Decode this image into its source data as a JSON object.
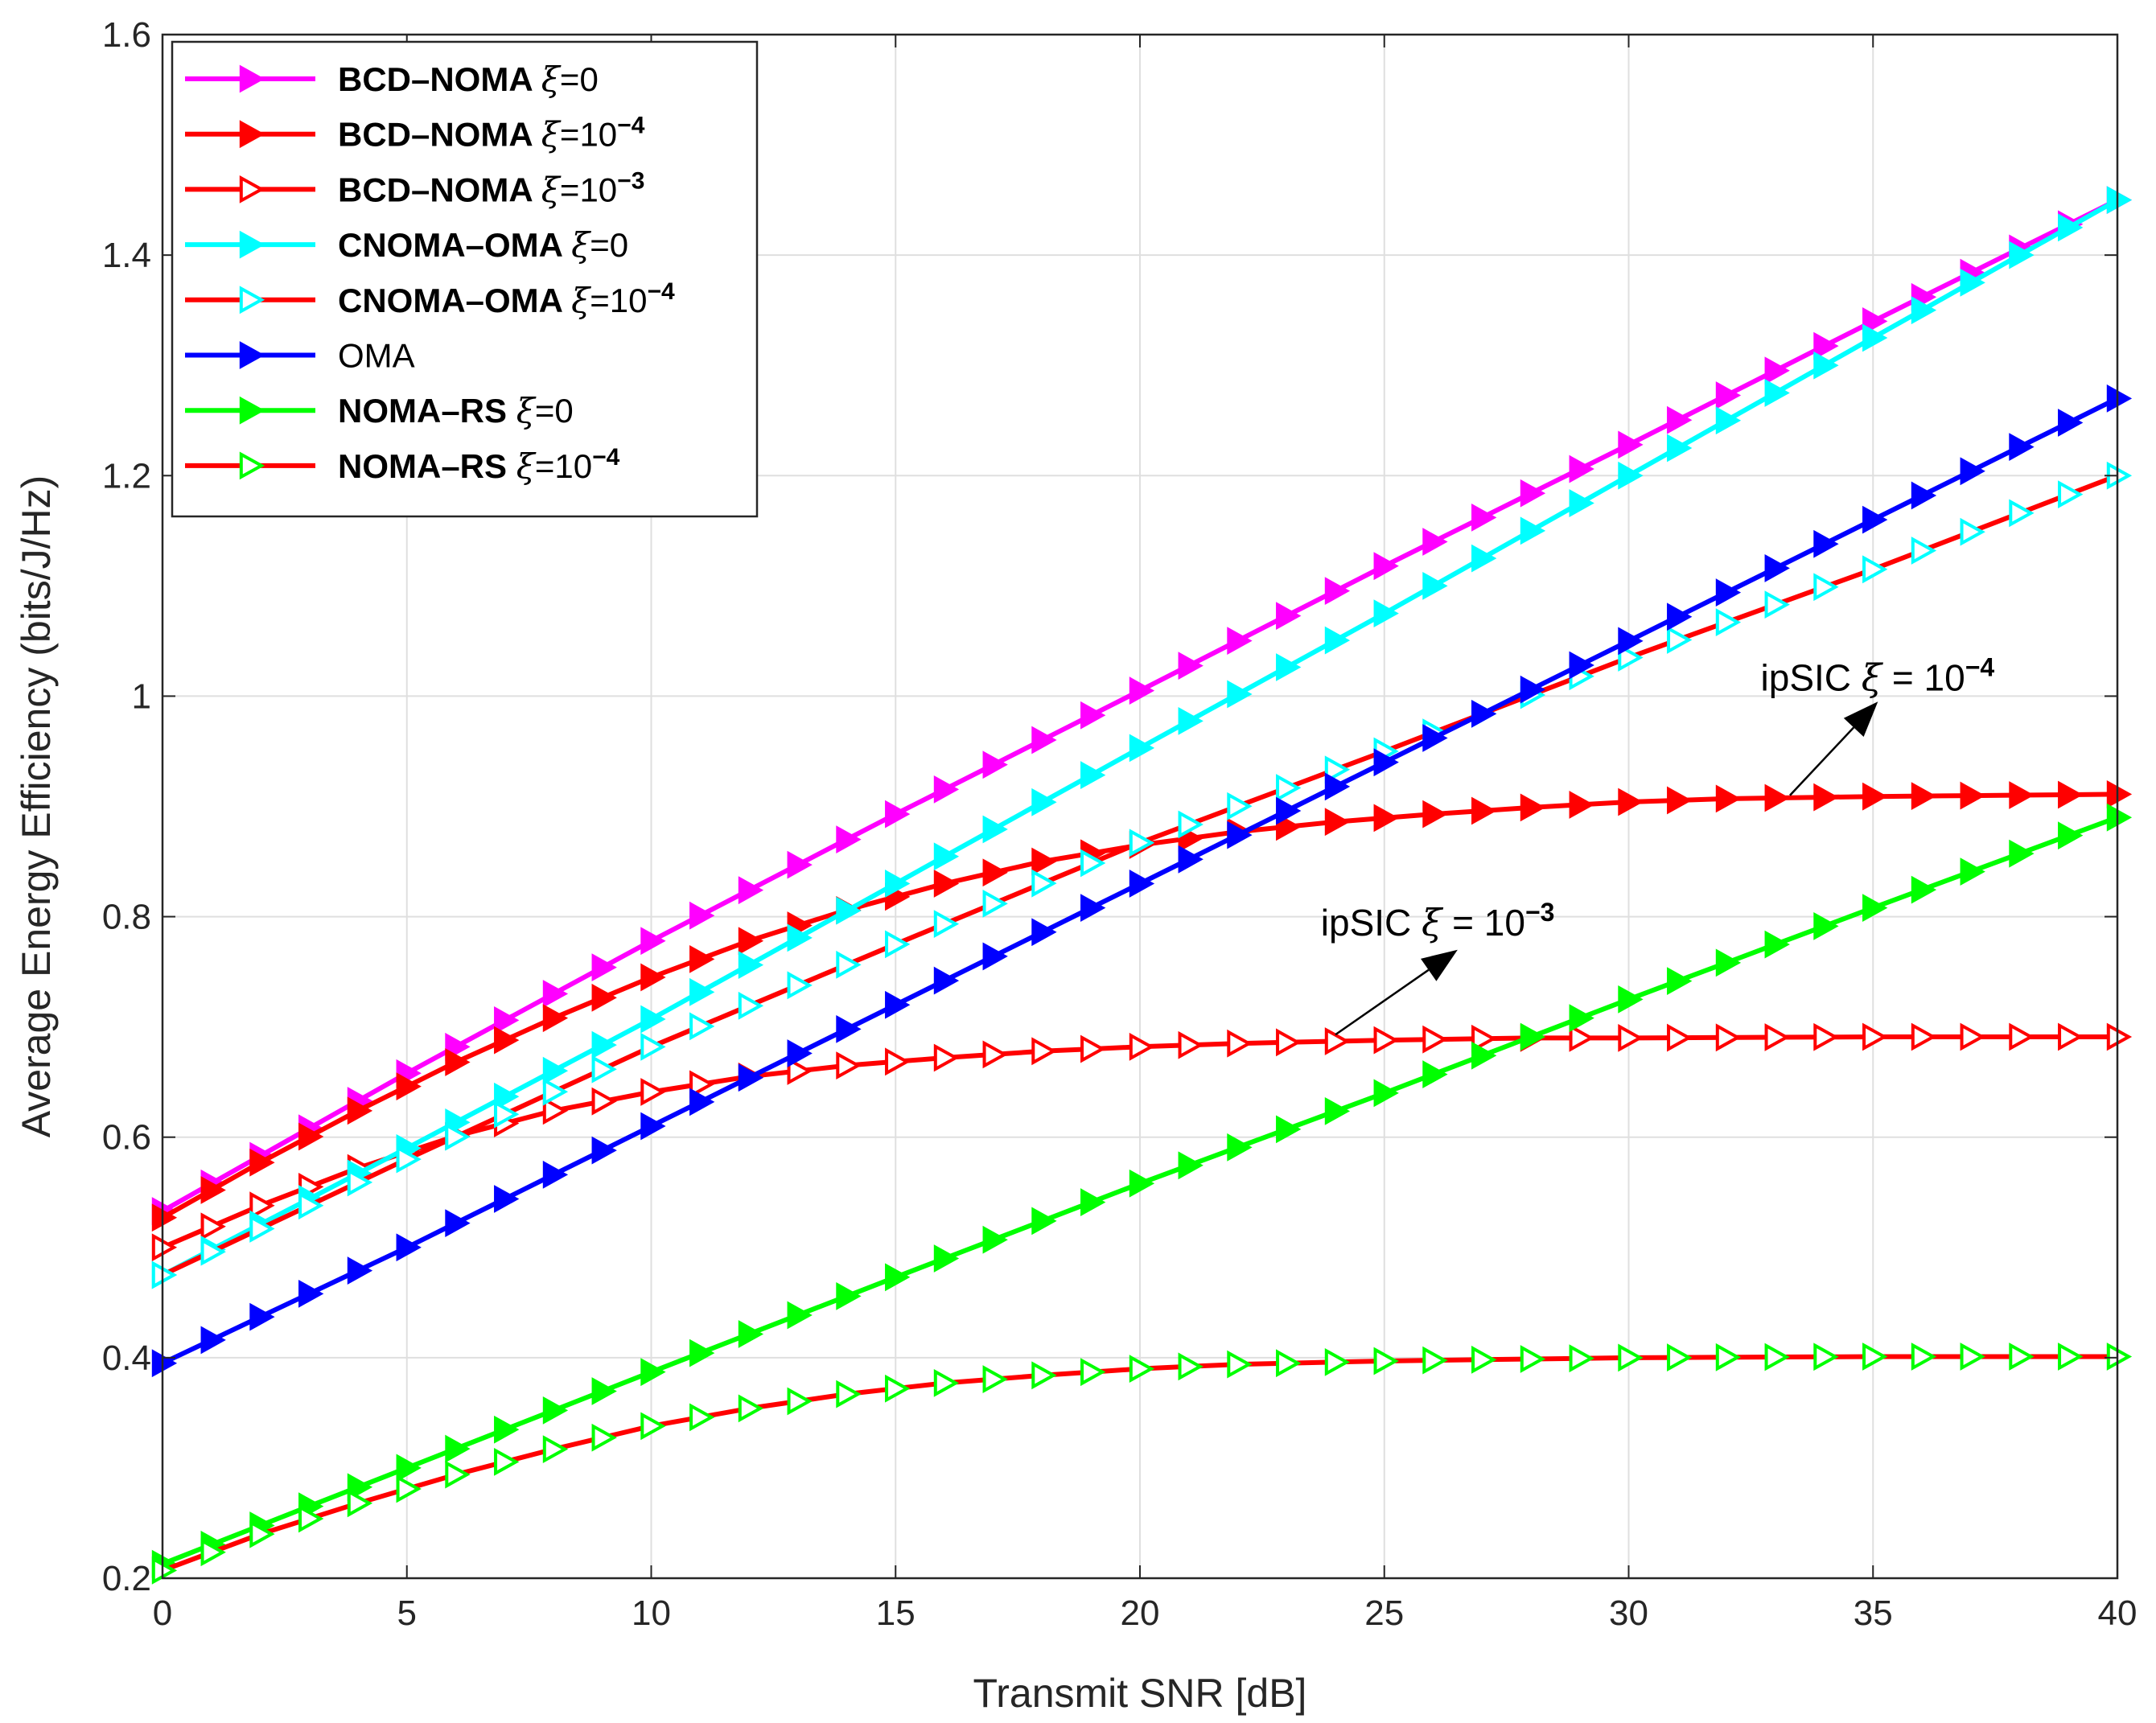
{
  "chart_data": {
    "type": "line",
    "xlabel": "Transmit SNR [dB]",
    "ylabel": "Average Energy Efficiency (bits/J/Hz)",
    "xlim": [
      0,
      40
    ],
    "ylim": [
      0.2,
      1.6
    ],
    "xticks": [
      0,
      5,
      10,
      15,
      20,
      25,
      30,
      35,
      40
    ],
    "yticks": [
      0.2,
      0.4,
      0.6,
      0.8,
      1,
      1.2,
      1.4,
      1.6
    ],
    "xtick_labels": [
      "0",
      "5",
      "10",
      "15",
      "20",
      "25",
      "30",
      "35",
      "40"
    ],
    "ytick_labels": [
      "0.2",
      "0.4",
      "0.6",
      "0.8",
      "1",
      "1.2",
      "1.4",
      "1.6"
    ],
    "grid": true,
    "legend_position": "top-left",
    "series": [
      {
        "name": "BCD–NOMA ξ=0",
        "label_main": "BCD–NOMA ",
        "label_sym": "ξ",
        "label_eq": "=0",
        "label_exp": "",
        "bold": true,
        "line_color": "#ff00ff",
        "marker_color": "#ff00ff",
        "marker_fill": "#ff00ff",
        "x": [
          0,
          5,
          10,
          15,
          20,
          25,
          30,
          35,
          40
        ],
        "y": [
          0.533,
          0.658,
          0.778,
          0.893,
          1.005,
          1.118,
          1.228,
          1.34,
          1.45
        ]
      },
      {
        "name": "BCD–NOMA ξ=10^-4",
        "label_main": "BCD–NOMA ",
        "label_sym": "ξ",
        "label_eq": "=10",
        "label_exp": "−4",
        "bold": true,
        "line_color": "#ff0000",
        "marker_color": "#ff0000",
        "marker_fill": "#ff0000",
        "x": [
          0,
          2,
          4,
          6,
          8,
          10,
          12,
          14,
          16,
          18,
          20,
          22,
          24,
          26,
          28,
          30,
          32,
          35,
          40
        ],
        "y": [
          0.527,
          0.577,
          0.624,
          0.668,
          0.708,
          0.745,
          0.778,
          0.806,
          0.83,
          0.85,
          0.865,
          0.877,
          0.886,
          0.893,
          0.899,
          0.904,
          0.907,
          0.909,
          0.911
        ]
      },
      {
        "name": "BCD–NOMA ξ=10^-3",
        "label_main": "BCD–NOMA ",
        "label_sym": "ξ",
        "label_eq": "=10",
        "label_exp": "−3",
        "bold": true,
        "line_color": "#ff0000",
        "marker_color": "#ff0000",
        "marker_fill": "#ffffff",
        "x": [
          0,
          2,
          4,
          6,
          8,
          10,
          12,
          14,
          16,
          18,
          20,
          22,
          25,
          28,
          30,
          35,
          40
        ],
        "y": [
          0.5,
          0.538,
          0.572,
          0.601,
          0.624,
          0.641,
          0.655,
          0.665,
          0.672,
          0.678,
          0.682,
          0.685,
          0.688,
          0.69,
          0.69,
          0.691,
          0.691
        ]
      },
      {
        "name": "CNOMA–OMA ξ=0",
        "label_main": "CNOMA–OMA ",
        "label_sym": "ξ",
        "label_eq": "=0",
        "label_exp": "",
        "bold": true,
        "line_color": "#00ffff",
        "marker_color": "#00ffff",
        "marker_fill": "#00ffff",
        "x": [
          0,
          5,
          10,
          15,
          20,
          25,
          30,
          35,
          40
        ],
        "y": [
          0.475,
          0.59,
          0.707,
          0.83,
          0.953,
          1.075,
          1.2,
          1.325,
          1.45
        ]
      },
      {
        "name": "CNOMA–OMA ξ=10^-4",
        "label_main": "CNOMA–OMA ",
        "label_sym": "ξ",
        "label_eq": "=10",
        "label_exp": "−4",
        "bold": true,
        "line_color": "#ff0000",
        "marker_color": "#00ffff",
        "marker_fill": "#ffffff",
        "x": [
          0,
          5,
          10,
          15,
          20,
          25,
          30,
          35,
          40
        ],
        "y": [
          0.475,
          0.58,
          0.682,
          0.775,
          0.867,
          0.95,
          1.035,
          1.115,
          1.2
        ]
      },
      {
        "name": "OMA",
        "label_main": "OMA",
        "label_sym": "",
        "label_eq": "",
        "label_exp": "",
        "bold": false,
        "line_color": "#0000ff",
        "marker_color": "#0000ff",
        "marker_fill": "#0000ff",
        "x": [
          0,
          5,
          10,
          15,
          20,
          25,
          30,
          35,
          40
        ],
        "y": [
          0.395,
          0.5,
          0.61,
          0.72,
          0.83,
          0.94,
          1.05,
          1.16,
          1.27
        ]
      },
      {
        "name": "NOMA–RS ξ=0",
        "label_main": "NOMA–RS ",
        "label_sym": "ξ",
        "label_eq": "=0",
        "label_exp": "",
        "bold": true,
        "line_color": "#00ff00",
        "marker_color": "#00ff00",
        "marker_fill": "#00ff00",
        "x": [
          0,
          5,
          10,
          15,
          20,
          25,
          30,
          35,
          40
        ],
        "y": [
          0.213,
          0.3,
          0.387,
          0.473,
          0.558,
          0.64,
          0.725,
          0.808,
          0.89
        ]
      },
      {
        "name": "NOMA–RS ξ=10^-4",
        "label_main": "NOMA–RS ",
        "label_sym": "ξ",
        "label_eq": "=10",
        "label_exp": "−4",
        "bold": true,
        "line_color": "#ff0000",
        "marker_color": "#00ff00",
        "marker_fill": "#ffffff",
        "x": [
          0,
          2,
          4,
          6,
          8,
          10,
          12,
          14,
          16,
          18,
          20,
          22,
          25,
          30,
          35,
          40
        ],
        "y": [
          0.207,
          0.24,
          0.268,
          0.294,
          0.317,
          0.338,
          0.354,
          0.367,
          0.377,
          0.384,
          0.39,
          0.394,
          0.397,
          0.4,
          0.401,
          0.401
        ]
      }
    ],
    "annotations": [
      {
        "text_main": "ipSIC ",
        "sym": "ξ",
        "eq": " = 10",
        "exp": "−4",
        "arrow_from": [
          33.3,
          0.91
        ],
        "arrow_to": [
          35.1,
          0.995
        ],
        "text_at": [
          32.7,
          1.005
        ]
      },
      {
        "text_main": "ipSIC ",
        "sym": "ξ",
        "eq": " = 10",
        "exp": "−3",
        "arrow_from": [
          24.0,
          0.693
        ],
        "arrow_to": [
          26.5,
          0.77
        ],
        "text_at": [
          23.7,
          0.783
        ]
      }
    ]
  }
}
